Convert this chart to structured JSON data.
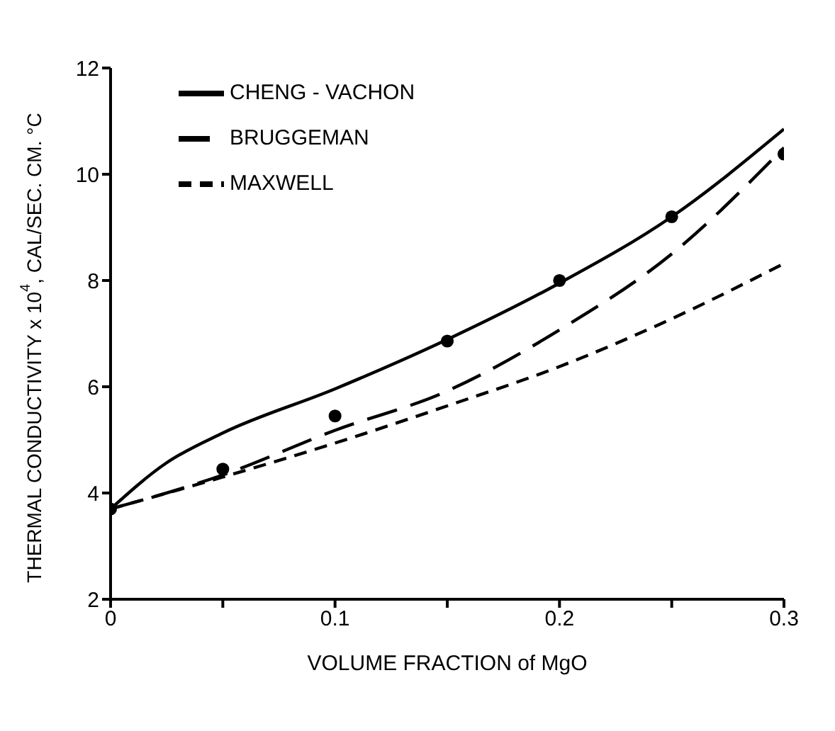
{
  "chart_data": {
    "type": "line",
    "xlabel": "VOLUME FRACTION of MgO",
    "ylabel": "THERMAL CONDUCTIVITY x 10$^{4}$, CAL/SEC. CM. °C",
    "xlim": [
      0,
      0.3
    ],
    "xticks": [
      0,
      {
        "value": 0.05,
        "label": null
      },
      0.1,
      {
        "value": 0.15,
        "label": null
      },
      0.2,
      {
        "value": 0.25,
        "label": null
      },
      0.3
    ],
    "ylim": [
      2,
      12
    ],
    "yticks": [
      2,
      4,
      6,
      8,
      10,
      12
    ],
    "grid": false,
    "legend": "top left",
    "marker": "none",
    "series": [
      {
        "name": "CHENG - VACHON",
        "color": "#000000",
        "line_style": "solid",
        "x": [
          0,
          0.025,
          0.05,
          0.1,
          0.15,
          0.2,
          0.25,
          0.3
        ],
        "values": [
          3.7,
          4.57,
          5.13,
          5.96,
          6.89,
          7.95,
          9.2,
          10.85
        ]
      },
      {
        "name": "BRUGGEMAN",
        "color": "#000000",
        "line_style": "dashed",
        "x": [
          0,
          0.05,
          0.1,
          0.15,
          0.2,
          0.25,
          0.3
        ],
        "values": [
          3.7,
          4.34,
          5.18,
          5.92,
          7.07,
          8.5,
          10.5
        ]
      },
      {
        "name": "MAXWELL",
        "color": "#000000",
        "line_style": "dotted",
        "x": [
          0,
          0.05,
          0.1,
          0.15,
          0.2,
          0.25,
          0.3
        ],
        "values": [
          3.7,
          4.3,
          4.94,
          5.64,
          6.38,
          7.28,
          8.32
        ]
      },
      {
        "type": "scatter",
        "marker": "circle",
        "color": "#000000",
        "x": [
          0,
          0.05,
          0.1,
          0.15,
          0.2,
          0.25,
          0.3
        ],
        "values": [
          3.7,
          4.45,
          5.45,
          6.86,
          8.0,
          9.2,
          10.38
        ]
      }
    ]
  }
}
